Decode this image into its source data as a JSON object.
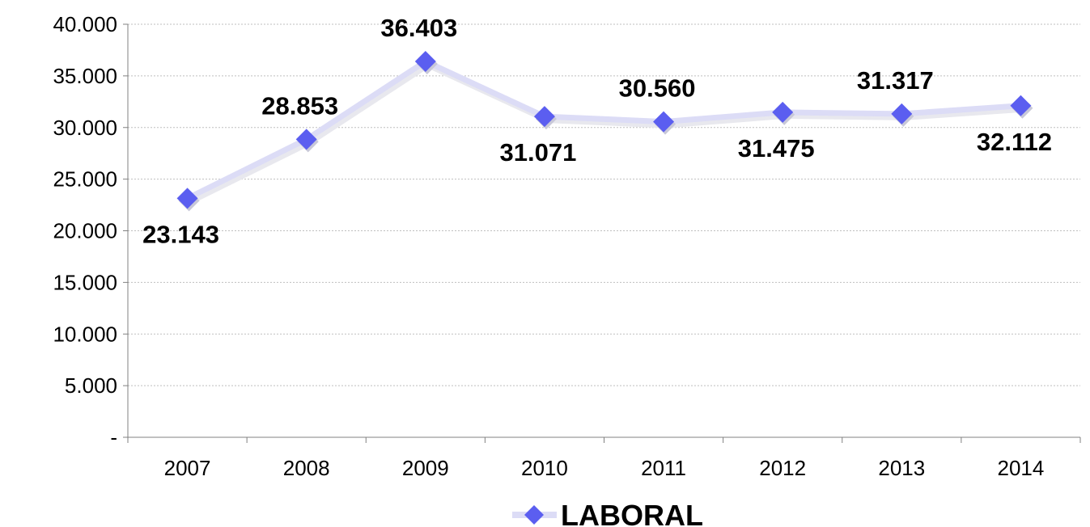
{
  "chart_data": {
    "type": "line",
    "categories": [
      "2007",
      "2008",
      "2009",
      "2010",
      "2011",
      "2012",
      "2013",
      "2014"
    ],
    "series": [
      {
        "name": "LABORAL",
        "values": [
          23143,
          28853,
          36403,
          31071,
          30560,
          31475,
          31317,
          32112
        ],
        "labels": [
          "23.143",
          "28.853",
          "36.403",
          "31.071",
          "30.560",
          "31.475",
          "31.317",
          "32.112"
        ],
        "label_positions": [
          "below",
          "above",
          "above",
          "below",
          "above",
          "below",
          "above",
          "below"
        ]
      }
    ],
    "yticks": [
      "-",
      "5.000",
      "10.000",
      "15.000",
      "20.000",
      "25.000",
      "30.000",
      "35.000",
      "40.000"
    ],
    "ylim": [
      0,
      40000
    ],
    "ystep": 5000,
    "grid": "horizontal-dotted",
    "legend_position": "bottom",
    "colors": {
      "marker": "#5b5ef0",
      "line": "#dcdcf6",
      "grid": "#bfbfbf",
      "axis": "#808080"
    },
    "marker": "diamond"
  }
}
